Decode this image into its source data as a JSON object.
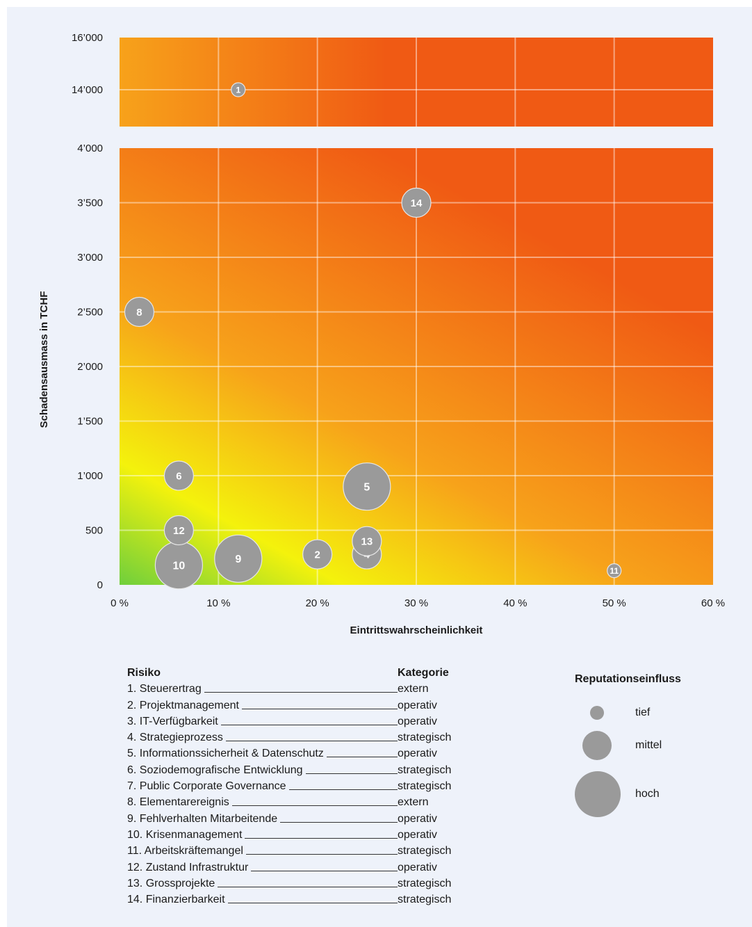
{
  "chart_data": {
    "type": "bubble-scatter",
    "xlabel": "Eintrittswahrscheinlichkeit",
    "ylabel": "Schadensausmass in TCHF",
    "x_ticks": [
      "0 %",
      "10 %",
      "20 %",
      "30 %",
      "40 %",
      "50 %",
      "60 %"
    ],
    "xlim": [
      0,
      60
    ],
    "y_ticks_lower": [
      "0",
      "500",
      "1’000",
      "1’500",
      "2’000",
      "2’500",
      "3’000",
      "3’500",
      "4’000"
    ],
    "ylim_lower": [
      0,
      4000
    ],
    "y_ticks_upper": [
      "14’000",
      "16’000"
    ],
    "ylim_upper": [
      13000,
      16000
    ],
    "axis_break": true,
    "grid": true,
    "points": [
      {
        "id": "1",
        "x": 12,
        "y": 14000,
        "size": "tief"
      },
      {
        "id": "2",
        "x": 20,
        "y": 280,
        "size": "mittel"
      },
      {
        "id": "4",
        "x": 25,
        "y": 280,
        "size": "mittel"
      },
      {
        "id": "5",
        "x": 25,
        "y": 900,
        "size": "hoch"
      },
      {
        "id": "6",
        "x": 6,
        "y": 1000,
        "size": "mittel"
      },
      {
        "id": "8",
        "x": 2,
        "y": 2500,
        "size": "mittel"
      },
      {
        "id": "9",
        "x": 12,
        "y": 240,
        "size": "hoch"
      },
      {
        "id": "10",
        "x": 6,
        "y": 180,
        "size": "hoch"
      },
      {
        "id": "11",
        "x": 50,
        "y": 130,
        "size": "tief"
      },
      {
        "id": "12",
        "x": 6,
        "y": 500,
        "size": "mittel"
      },
      {
        "id": "13",
        "x": 25,
        "y": 400,
        "size": "mittel"
      },
      {
        "id": "14",
        "x": 30,
        "y": 3500,
        "size": "mittel"
      }
    ]
  },
  "risk_table": {
    "header_risk": "Risiko",
    "header_category": "Kategorie",
    "rows": [
      {
        "name": "1. Steuerertrag",
        "category": "extern"
      },
      {
        "name": "2. Projektmanagement",
        "category": "operativ"
      },
      {
        "name": "3. IT-Verfügbarkeit",
        "category": "operativ"
      },
      {
        "name": "4. Strategieprozess",
        "category": "strategisch"
      },
      {
        "name": "5. Informationssicherheit & Datenschutz",
        "category": "operativ"
      },
      {
        "name": "6. Soziodemografische Entwicklung",
        "category": "strategisch"
      },
      {
        "name": "7. Public Corporate Governance",
        "category": "strategisch"
      },
      {
        "name": "8. Elementarereignis",
        "category": "extern"
      },
      {
        "name": "9. Fehlverhalten Mitarbeitende",
        "category": "operativ"
      },
      {
        "name": "10. Krisenmanagement",
        "category": "operativ"
      },
      {
        "name": "11. Arbeitskräftemangel",
        "category": "strategisch"
      },
      {
        "name": "12. Zustand Infrastruktur",
        "category": "operativ"
      },
      {
        "name": "13. Grossprojekte",
        "category": "strategisch"
      },
      {
        "name": "14. Finanzierbarkeit",
        "category": "strategisch"
      }
    ]
  },
  "size_legend": {
    "title": "Reputationseinfluss",
    "items": [
      {
        "key": "tief",
        "label": "tief"
      },
      {
        "key": "mittel",
        "label": "mittel"
      },
      {
        "key": "hoch",
        "label": "hoch"
      }
    ]
  },
  "colors": {
    "background": "#eef2fa",
    "bubble": "#9a9a9a",
    "bubble_stroke": "#e6e6e6",
    "heat_green": "#6fcf3c",
    "heat_yellow": "#f4f20c",
    "heat_orange": "#f7a21a",
    "heat_red": "#f05a14",
    "gridline": "#ffffff"
  }
}
